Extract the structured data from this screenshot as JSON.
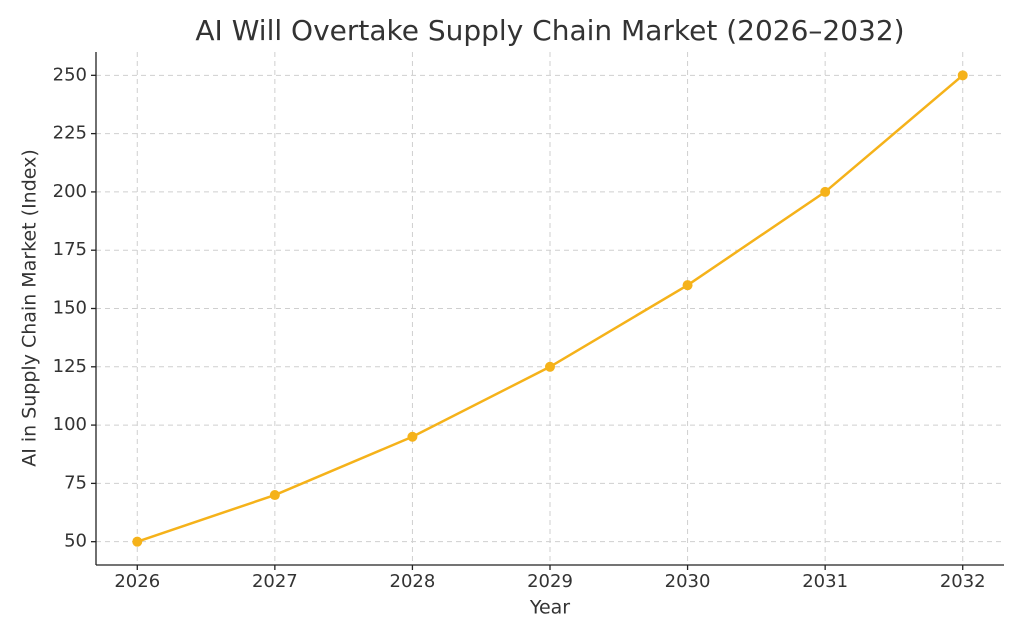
{
  "chart_data": {
    "type": "line",
    "title": "AI Will Overtake Supply Chain Market (2026–2032)",
    "x_label": "Year",
    "y_label": "AI in Supply Chain Market (Index)",
    "x": [
      2026,
      2027,
      2028,
      2029,
      2030,
      2031,
      2032
    ],
    "series": [
      {
        "values": [
          50,
          70,
          95,
          125,
          160,
          200,
          250
        ],
        "color": "#f5b21a"
      }
    ],
    "xlim": [
      2025.7,
      2032.3
    ],
    "xticks": [
      2026,
      2027,
      2028,
      2029,
      2030,
      2031,
      2032
    ],
    "ylim": [
      40,
      260
    ],
    "yticks": [
      50,
      75,
      100,
      125,
      150,
      175,
      200,
      225,
      250
    ],
    "grid": true
  }
}
